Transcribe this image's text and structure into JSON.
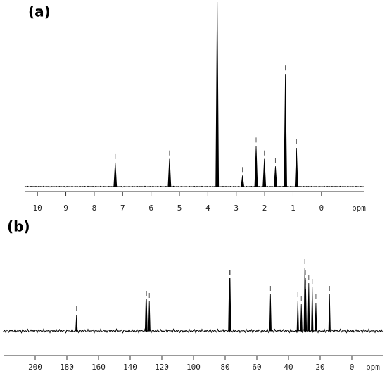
{
  "chart_data": [
    {
      "type": "spectrum",
      "title": "(a)",
      "xlabel": "ppm",
      "x": [
        7.26,
        5.35,
        3.67,
        2.78,
        2.3,
        2.01,
        1.62,
        1.27,
        0.88
      ],
      "values": [
        13,
        15,
        100,
        6,
        22,
        15,
        11,
        61,
        21
      ],
      "color": "#000000",
      "xlim": [
        10.45,
        -1.49
      ],
      "ylim": [
        0,
        100
      ],
      "xticks": [
        10,
        9,
        8,
        7,
        6,
        5,
        4,
        3,
        2,
        1,
        0
      ]
    },
    {
      "type": "spectrum",
      "title": "(b)",
      "xlabel": "ppm",
      "x": [
        173.9,
        130.0,
        129.7,
        127.9,
        77.4,
        77.2,
        76.9,
        51.4,
        34.1,
        31.9,
        29.7,
        29.3,
        29.1,
        27.2,
        25.0,
        22.7,
        14.1
      ],
      "values": [
        23,
        48,
        45,
        42,
        75,
        75,
        75,
        52,
        43,
        38,
        90,
        75,
        60,
        68,
        62,
        40,
        52
      ],
      "color": "#000000",
      "xlim": [
        220,
        -20
      ],
      "ylim": [
        0,
        100
      ],
      "xticks": [
        200,
        180,
        160,
        140,
        120,
        100,
        80,
        60,
        40,
        20,
        0
      ]
    }
  ]
}
